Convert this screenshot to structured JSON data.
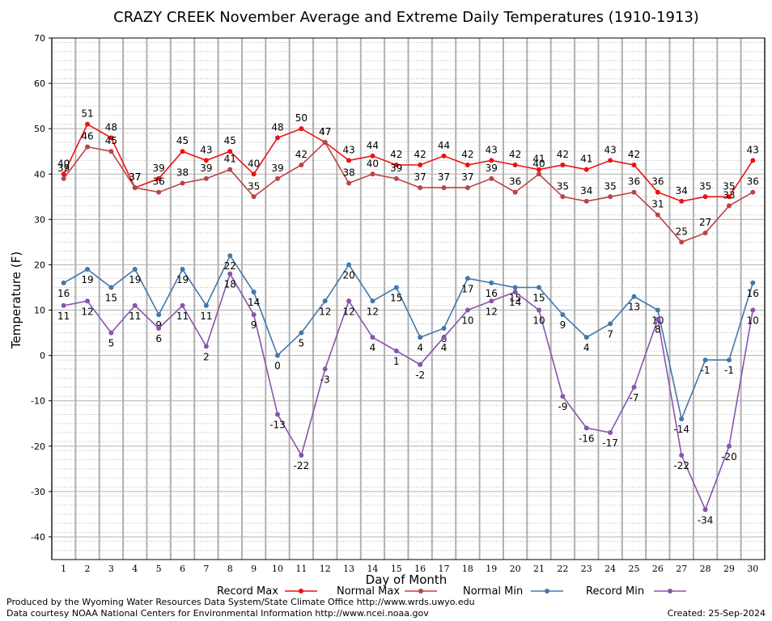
{
  "chart_data": {
    "type": "line",
    "title": "CRAZY CREEK November Average and Extreme Daily Temperatures (1910-1913)",
    "xlabel": "Day of Month",
    "ylabel": "Temperature (F)",
    "ylim": [
      -45,
      70
    ],
    "y_ticks": [
      -40,
      -30,
      -20,
      -10,
      0,
      10,
      20,
      30,
      40,
      50,
      60,
      70
    ],
    "x": [
      1,
      2,
      3,
      4,
      5,
      6,
      7,
      8,
      9,
      10,
      11,
      12,
      13,
      14,
      15,
      16,
      17,
      18,
      19,
      20,
      21,
      22,
      23,
      24,
      25,
      26,
      27,
      28,
      29,
      30
    ],
    "grid": true,
    "legend_position": "bottom",
    "series": [
      {
        "name": "Record Max",
        "color": "#ee1111",
        "values": [
          40,
          51,
          48,
          37,
          39,
          45,
          43,
          45,
          40,
          48,
          50,
          47,
          43,
          44,
          42,
          42,
          44,
          42,
          43,
          42,
          41,
          42,
          41,
          43,
          42,
          36,
          34,
          35,
          35,
          43
        ]
      },
      {
        "name": "Normal Max",
        "color": "#bb4444",
        "values": [
          39,
          46,
          45,
          37,
          36,
          38,
          39,
          41,
          35,
          39,
          42,
          47,
          38,
          40,
          39,
          37,
          37,
          37,
          39,
          36,
          40,
          35,
          34,
          35,
          36,
          31,
          25,
          27,
          33,
          36
        ]
      },
      {
        "name": "Normal Min",
        "color": "#4477aa",
        "values": [
          16,
          19,
          15,
          19,
          9,
          19,
          11,
          22,
          14,
          0,
          5,
          12,
          20,
          12,
          15,
          4,
          6,
          17,
          16,
          15,
          15,
          9,
          4,
          7,
          13,
          10,
          -14,
          -1,
          -1,
          16
        ]
      },
      {
        "name": "Record Min",
        "color": "#8855aa",
        "values": [
          11,
          12,
          5,
          11,
          6,
          11,
          2,
          18,
          9,
          -13,
          -22,
          -3,
          12,
          4,
          1,
          -2,
          4,
          10,
          12,
          14,
          10,
          -9,
          -16,
          -17,
          -7,
          8,
          -22,
          -34,
          -20,
          10
        ]
      }
    ]
  },
  "footer": {
    "credit_line_1": "Produced by the Wyoming Water Resources Data System/State Climate Office http://www.wrds.uwyo.edu",
    "credit_line_2": "Data courtesy NOAA National Centers for Environmental Information http://www.ncei.noaa.gov",
    "created": "Created:  25-Sep-2024"
  }
}
